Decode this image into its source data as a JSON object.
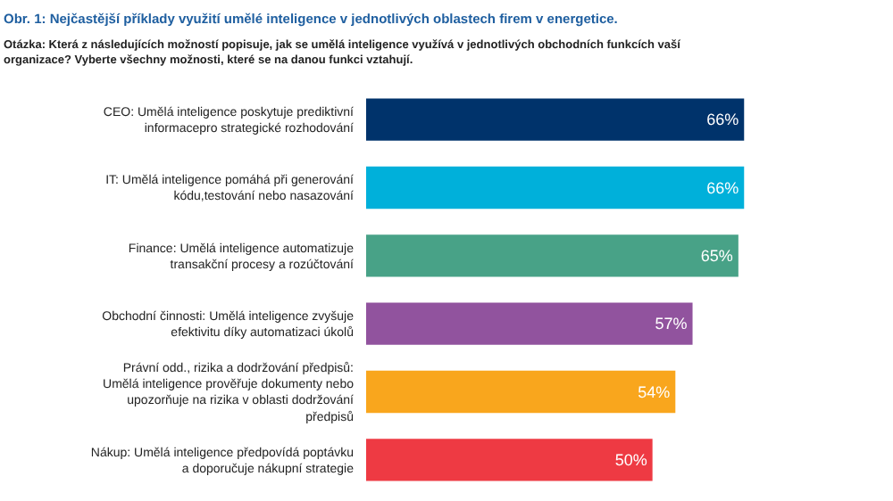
{
  "chart_data": {
    "type": "bar",
    "orientation": "horizontal",
    "title": "Obr. 1: Nejčastější příklady využití umělé inteligence v jednotlivých oblastech firem v energetice.",
    "subtitle": "Otázka: Která z následujících možností popisuje, jak se umělá inteligence využívá v jednotlivých obchodních funkcích vaší organizace? Vyberte všechny možnosti, které se na danou funkci vztahují.",
    "categories": [
      "CEO: Umělá inteligence poskytuje prediktivní informacepro strategické rozhodování",
      "IT: Umělá inteligence pomáhá při generování kódu,testování nebo nasazování",
      "Finance: Umělá inteligence automatizuje transakční procesy a rozúčtování",
      "Obchodní činnosti: Umělá inteligence zvyšuje efektivitu díky automatizaci úkolů",
      "Právní odd., rizika a dodržování předpisů: Umělá inteligence prověřuje dokumenty nebo upozorňuje na rizika v oblasti dodržování předpisů",
      "Nákup: Umělá inteligence předpovídá poptávku a doporučuje nákupní strategie"
    ],
    "values": [
      66,
      66,
      65,
      57,
      54,
      50
    ],
    "value_labels": [
      "66%",
      "66%",
      "65%",
      "57%",
      "54%",
      "50%"
    ],
    "colors": [
      "#00336b",
      "#00b0da",
      "#48a287",
      "#91539e",
      "#f9a61d",
      "#ee3a43"
    ],
    "xlim": [
      0,
      92
    ]
  }
}
